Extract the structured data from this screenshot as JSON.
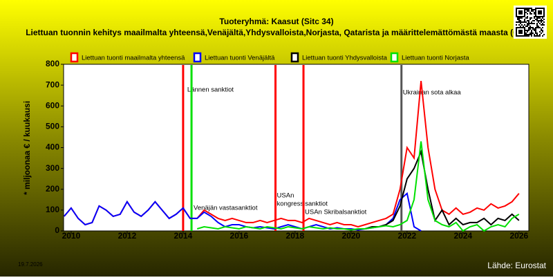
{
  "chart_data": {
    "type": "line",
    "title": "Tuoteryhmä: Kaasut (Sitc 34)",
    "subtitle": "Liettuan tuonnin kehitys maailmalta yhteensä,Venäjältä,Yhdysvalloista,Norjasta, Qatarista ja määrittelemättömästä maasta (QZ)",
    "y_label": "* miljoonaa € / kuukausi",
    "date": "19.7.2026",
    "source": "Lähde: Eurostat",
    "xlim": [
      2009.73,
      2026.35
    ],
    "ylim": [
      0,
      800
    ],
    "xticks": [
      2010,
      2012,
      2014,
      2016,
      2018,
      2020,
      2022,
      2024,
      2026
    ],
    "yticks": [
      0,
      100,
      200,
      300,
      400,
      500,
      600,
      700,
      800
    ],
    "x": [
      2009.75,
      2010,
      2010.25,
      2010.5,
      2010.75,
      2011,
      2011.25,
      2011.5,
      2011.75,
      2012,
      2012.25,
      2012.5,
      2012.75,
      2013,
      2013.25,
      2013.5,
      2013.75,
      2014,
      2014.25,
      2014.5,
      2014.75,
      2015,
      2015.25,
      2015.5,
      2015.75,
      2016,
      2016.25,
      2016.5,
      2016.75,
      2017,
      2017.25,
      2017.5,
      2017.75,
      2018,
      2018.25,
      2018.5,
      2018.75,
      2019,
      2019.25,
      2019.5,
      2019.75,
      2020,
      2020.25,
      2020.5,
      2020.75,
      2021,
      2021.25,
      2021.5,
      2021.75,
      2022,
      2022.25,
      2022.5,
      2022.75,
      2023,
      2023.25,
      2023.5,
      2023.75,
      2024,
      2024.25,
      2024.5,
      2024.75,
      2025,
      2025.25,
      2025.5,
      2025.75,
      2026
    ],
    "series": [
      {
        "name": "Liettuan tuonti maailmalta yhteensä",
        "color": "#ff0000",
        "values": [
          70,
          110,
          60,
          30,
          40,
          120,
          100,
          70,
          80,
          140,
          90,
          70,
          100,
          140,
          100,
          60,
          80,
          110,
          60,
          60,
          100,
          80,
          60,
          50,
          60,
          50,
          40,
          40,
          50,
          40,
          50,
          60,
          50,
          50,
          40,
          60,
          50,
          40,
          30,
          40,
          30,
          30,
          20,
          30,
          40,
          50,
          60,
          80,
          200,
          400,
          350,
          720,
          400,
          200,
          100,
          80,
          110,
          80,
          90,
          110,
          100,
          130,
          110,
          120,
          140,
          180
        ]
      },
      {
        "name": "Liettuan tuonti Venäjältä",
        "color": "#0000ff",
        "values": [
          70,
          110,
          60,
          30,
          40,
          120,
          100,
          70,
          80,
          140,
          90,
          70,
          100,
          140,
          100,
          60,
          80,
          110,
          60,
          60,
          90,
          70,
          40,
          20,
          30,
          30,
          20,
          15,
          20,
          15,
          10,
          20,
          30,
          20,
          10,
          20,
          30,
          20,
          10,
          15,
          10,
          10,
          5,
          10,
          15,
          20,
          30,
          60,
          150,
          180,
          20,
          0,
          null,
          null,
          null,
          null,
          null,
          null,
          null,
          null,
          null,
          null,
          null,
          null,
          null,
          null
        ]
      },
      {
        "name": "Liettuan tuonti Yhdysvalloista",
        "color": "#000000",
        "values": [
          null,
          null,
          null,
          null,
          null,
          null,
          null,
          null,
          null,
          null,
          null,
          null,
          null,
          null,
          null,
          null,
          null,
          null,
          null,
          null,
          null,
          null,
          null,
          null,
          null,
          null,
          null,
          null,
          null,
          null,
          null,
          null,
          null,
          null,
          null,
          null,
          null,
          null,
          null,
          null,
          null,
          null,
          null,
          10,
          20,
          20,
          30,
          50,
          120,
          250,
          300,
          380,
          200,
          50,
          100,
          30,
          60,
          30,
          40,
          40,
          60,
          30,
          60,
          50,
          80,
          50
        ]
      },
      {
        "name": "Liettuan tuonti Norjasta",
        "color": "#00e000",
        "values": [
          null,
          null,
          null,
          null,
          null,
          null,
          null,
          null,
          null,
          null,
          null,
          null,
          null,
          null,
          null,
          null,
          null,
          null,
          null,
          10,
          20,
          15,
          10,
          20,
          15,
          10,
          20,
          15,
          10,
          20,
          15,
          10,
          20,
          15,
          10,
          20,
          15,
          10,
          15,
          10,
          10,
          5,
          10,
          10,
          15,
          20,
          25,
          20,
          30,
          50,
          150,
          430,
          150,
          50,
          30,
          20,
          40,
          0,
          20,
          30,
          0,
          20,
          30,
          20,
          60,
          80
        ]
      }
    ],
    "events": [
      {
        "x": 2014.0,
        "color": "#ff0000",
        "label": [
          "Lännen sanktiot"
        ]
      },
      {
        "x": 2014.3,
        "color": "#00e000",
        "label": [
          "Venäjän vastasanktiot"
        ]
      },
      {
        "x": 2017.3,
        "color": "#ff0000",
        "label": [
          "USAn",
          "kongressisanktiot"
        ]
      },
      {
        "x": 2018.3,
        "color": "#ff0000",
        "label": [
          "USAn Skribalsanktiot"
        ]
      },
      {
        "x": 2021.8,
        "color": "#555555",
        "label": [
          "Ukrainan sota alkaa"
        ]
      }
    ]
  }
}
